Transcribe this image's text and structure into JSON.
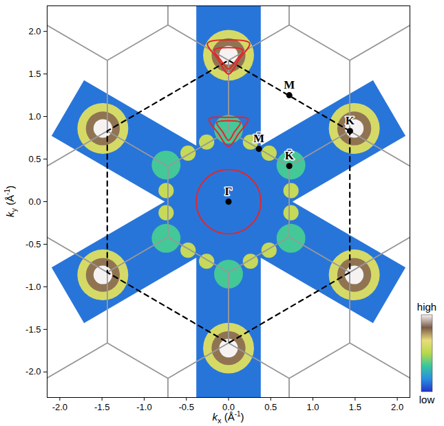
{
  "chart_data": {
    "type": "map",
    "xlabel": "kx (Å-1)",
    "ylabel": "ky (Å-1)",
    "xlim": [
      -2.15,
      2.15
    ],
    "ylim": [
      -2.3,
      2.3
    ],
    "xticks": [
      {
        "value": -2,
        "label": "-2.0"
      },
      {
        "value": -1.5,
        "label": "-1.5"
      },
      {
        "value": -1,
        "label": "-1.0"
      },
      {
        "value": -0.5,
        "label": "-0.5"
      },
      {
        "value": 0,
        "label": "0.0"
      },
      {
        "value": 0.5,
        "label": "0.5"
      },
      {
        "value": 1,
        "label": "1.0"
      },
      {
        "value": 1.5,
        "label": "1.5"
      },
      {
        "value": 2,
        "label": "2.0"
      }
    ],
    "yticks": [
      {
        "value": -2,
        "label": "-2.0"
      },
      {
        "value": -1.5,
        "label": "-1.5"
      },
      {
        "value": -1,
        "label": "-1.0"
      },
      {
        "value": -0.5,
        "label": "-0.5"
      },
      {
        "value": 0,
        "label": "0.0"
      },
      {
        "value": 0.5,
        "label": "0.5"
      },
      {
        "value": 1,
        "label": "1.0"
      },
      {
        "value": 1.5,
        "label": "1.5"
      },
      {
        "value": 2,
        "label": "2.0"
      }
    ],
    "cuts": [
      {
        "angle": 90,
        "half_length": 2.6,
        "half_width": 0.38,
        "intensity": 0.12
      },
      {
        "angle": 30,
        "half_length": 2.2,
        "half_width": 0.38,
        "intensity": 0.12
      },
      {
        "angle": 150,
        "half_length": 2.2,
        "half_width": 0.38,
        "intensity": 0.12
      }
    ],
    "intensity_spots": [
      {
        "x": 0,
        "y": 0.85,
        "radius": 0.17,
        "intensity": 0.35
      },
      {
        "x": 0,
        "y": -0.85,
        "radius": 0.17,
        "intensity": 0.35
      },
      {
        "x": 0.74,
        "y": 0.43,
        "radius": 0.17,
        "intensity": 0.35
      },
      {
        "x": -0.74,
        "y": 0.43,
        "radius": 0.17,
        "intensity": 0.35
      },
      {
        "x": 0.74,
        "y": -0.43,
        "radius": 0.17,
        "intensity": 0.35
      },
      {
        "x": -0.74,
        "y": -0.43,
        "radius": 0.17,
        "intensity": 0.35
      },
      {
        "x": 0,
        "y": 1.72,
        "radius": 0.3,
        "intensity": 0.6
      },
      {
        "x": 1.49,
        "y": 0.86,
        "radius": 0.3,
        "intensity": 0.6
      },
      {
        "x": -1.49,
        "y": 0.86,
        "radius": 0.3,
        "intensity": 0.6
      },
      {
        "x": -1.49,
        "y": -0.86,
        "radius": 0.3,
        "intensity": 0.6
      },
      {
        "x": 0,
        "y": -1.72,
        "radius": 0.3,
        "intensity": 0.6
      },
      {
        "x": 1.49,
        "y": -0.86,
        "radius": 0.3,
        "intensity": 0.6
      },
      {
        "x": 0.74,
        "y": 0.13,
        "radius": 0.09,
        "intensity": 0.55
      },
      {
        "x": 0.48,
        "y": 0.57,
        "radius": 0.09,
        "intensity": 0.55
      },
      {
        "x": 0.26,
        "y": 0.7,
        "radius": 0.09,
        "intensity": 0.55
      },
      {
        "x": -0.26,
        "y": 0.7,
        "radius": 0.09,
        "intensity": 0.55
      },
      {
        "x": -0.48,
        "y": 0.57,
        "radius": 0.09,
        "intensity": 0.55
      },
      {
        "x": -0.74,
        "y": 0.13,
        "radius": 0.09,
        "intensity": 0.55
      },
      {
        "x": -0.74,
        "y": -0.13,
        "radius": 0.09,
        "intensity": 0.55
      },
      {
        "x": -0.48,
        "y": -0.57,
        "radius": 0.09,
        "intensity": 0.55
      },
      {
        "x": -0.26,
        "y": -0.7,
        "radius": 0.09,
        "intensity": 0.55
      },
      {
        "x": 0.26,
        "y": -0.7,
        "radius": 0.09,
        "intensity": 0.55
      },
      {
        "x": 0.48,
        "y": -0.57,
        "radius": 0.09,
        "intensity": 0.55
      },
      {
        "x": 0.74,
        "y": -0.13,
        "radius": 0.09,
        "intensity": 0.55
      },
      {
        "x": 0,
        "y": 1.72,
        "radius": 0.2,
        "intensity": 0.8
      },
      {
        "x": 1.49,
        "y": 0.86,
        "radius": 0.2,
        "intensity": 0.8
      },
      {
        "x": -1.49,
        "y": 0.86,
        "radius": 0.2,
        "intensity": 0.8
      },
      {
        "x": -1.49,
        "y": -0.86,
        "radius": 0.2,
        "intensity": 0.8
      },
      {
        "x": 0,
        "y": -1.72,
        "radius": 0.2,
        "intensity": 0.8
      },
      {
        "x": 1.49,
        "y": -0.86,
        "radius": 0.2,
        "intensity": 0.8
      },
      {
        "x": 0,
        "y": 1.72,
        "radius": 0.11,
        "intensity": 1
      },
      {
        "x": 1.49,
        "y": 0.86,
        "radius": 0.11,
        "intensity": 1
      },
      {
        "x": -1.49,
        "y": 0.86,
        "radius": 0.11,
        "intensity": 1
      },
      {
        "x": -1.49,
        "y": -0.86,
        "radius": 0.11,
        "intensity": 1
      },
      {
        "x": 0,
        "y": -1.72,
        "radius": 0.11,
        "intensity": 1
      },
      {
        "x": 1.49,
        "y": -0.86,
        "radius": 0.11,
        "intensity": 1
      }
    ],
    "surface_bz": {
      "vertex_radius": 0.83,
      "color": "#999999"
    },
    "bulk_bz": {
      "vertex_radius": 1.66,
      "color": "#000000",
      "line_style": "dashed"
    },
    "contours": [
      {
        "color": "#e3262a",
        "points": [
          [
            -0.23,
            0.97
          ],
          [
            0,
            0.99
          ],
          [
            0.23,
            0.97
          ],
          [
            0.12,
            0.8
          ],
          [
            0,
            0.65
          ],
          [
            -0.12,
            0.8
          ]
        ]
      },
      {
        "color": "#e3262a",
        "points": [
          [
            -0.14,
            0.93
          ],
          [
            0,
            0.95
          ],
          [
            0.14,
            0.93
          ],
          [
            0.07,
            0.82
          ],
          [
            0,
            0.72
          ],
          [
            -0.07,
            0.82
          ]
        ]
      },
      {
        "color": "#e3262a",
        "points": [
          [
            -0.25,
            1.86
          ],
          [
            0,
            1.9
          ],
          [
            0.25,
            1.86
          ],
          [
            0.13,
            1.68
          ],
          [
            0,
            1.5
          ],
          [
            -0.13,
            1.68
          ]
        ]
      },
      {
        "color": "#e3262a",
        "points": [
          [
            -0.17,
            1.78
          ],
          [
            0,
            1.81
          ],
          [
            0.17,
            1.78
          ],
          [
            0.09,
            1.66
          ],
          [
            0,
            1.56
          ],
          [
            -0.09,
            1.66
          ]
        ]
      }
    ],
    "circles": [
      {
        "color": "#e3262a",
        "x": 0,
        "y": 0,
        "radius": 0.38
      }
    ],
    "points": [
      {
        "label": "Γ",
        "x": 0,
        "y": 0
      },
      {
        "label": "M̄",
        "x": 0.36,
        "y": 0.62
      },
      {
        "label": "K̄",
        "x": 0.72,
        "y": 0.42
      },
      {
        "label": "M",
        "x": 0.72,
        "y": 1.25
      },
      {
        "label": "K",
        "x": 1.44,
        "y": 0.83
      }
    ],
    "colorbar": {
      "range": [
        0,
        1
      ],
      "ticks": [
        {
          "value": 0,
          "label": "low"
        },
        {
          "value": 1,
          "label": "high"
        }
      ],
      "colors": [
        "#2236c8",
        "#2a8ee0",
        "#37c6a0",
        "#b7d84a",
        "#e9dc7a",
        "#7a5a48",
        "#f6f2f2"
      ]
    }
  }
}
